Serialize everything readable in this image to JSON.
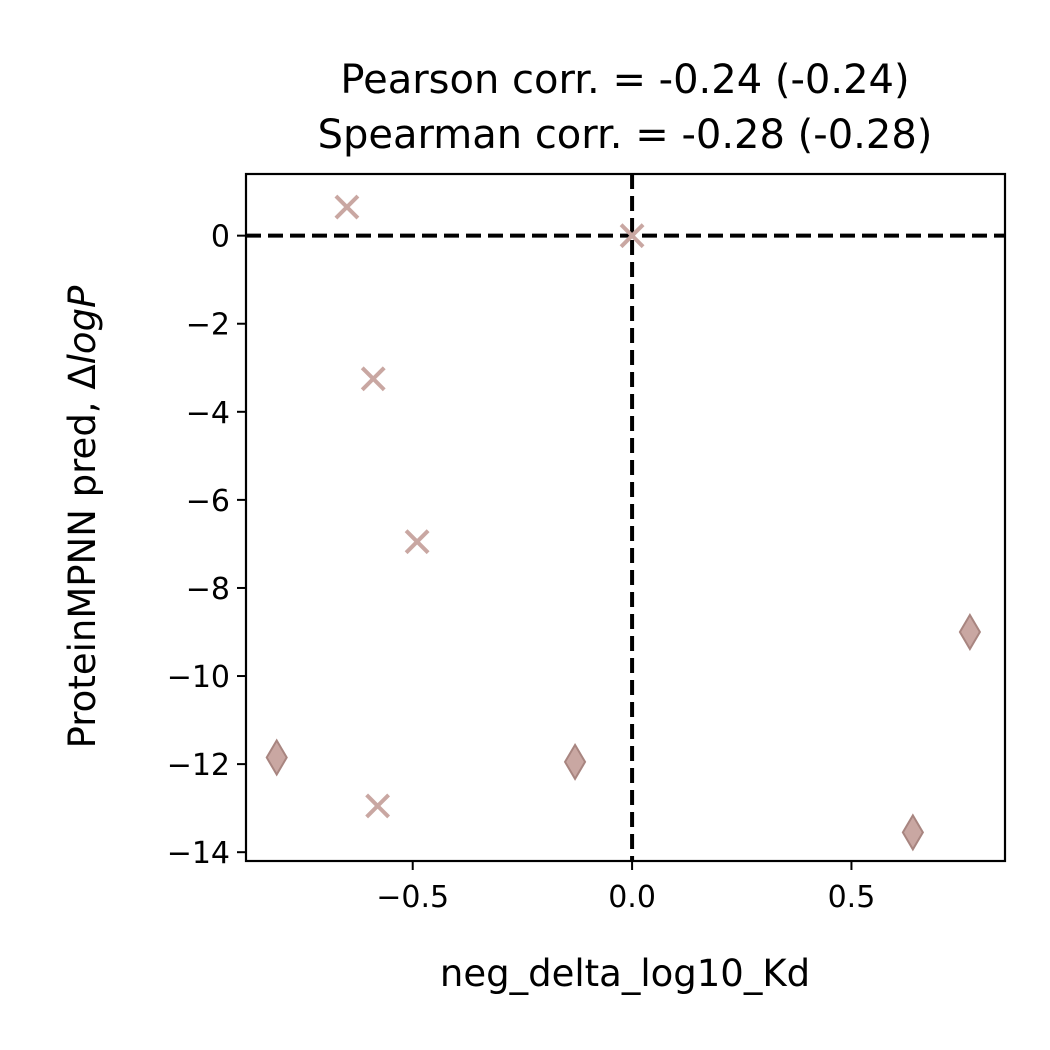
{
  "chart_data": {
    "type": "scatter",
    "title_lines": [
      "Pearson corr. = -0.24 (-0.24)",
      "Spearman corr. = -0.28 (-0.28)"
    ],
    "xlabel": "neg_delta_log10_Kd",
    "ylabel_main": "ProteinMPNN pred, Δ",
    "ylabel_italic": "logP",
    "xlim": [
      -0.88,
      0.85
    ],
    "ylim": [
      -14.2,
      1.4
    ],
    "xticks": [
      -0.5,
      0.0,
      0.5
    ],
    "xtick_labels": [
      "−0.5",
      "0.0",
      "0.5"
    ],
    "yticks": [
      0,
      -2,
      -4,
      -6,
      -8,
      -10,
      -12,
      -14
    ],
    "ytick_labels": [
      "0",
      "−2",
      "−4",
      "−6",
      "−8",
      "−10",
      "−12",
      "−14"
    ],
    "reference_lines": {
      "x": 0,
      "y": 0,
      "style": "dashed",
      "color": "#000000"
    },
    "grid": false,
    "series": [
      {
        "marker": "x",
        "color": "#c9a7a2",
        "points": [
          {
            "x": -0.65,
            "y": 0.65
          },
          {
            "x": 0.0,
            "y": 0.0
          },
          {
            "x": -0.59,
            "y": -3.25
          },
          {
            "x": -0.49,
            "y": -6.95
          },
          {
            "x": -0.58,
            "y": -12.95
          }
        ]
      },
      {
        "marker": "diamond",
        "color": "#c9a7a2",
        "edge_color": "#a88580",
        "points": [
          {
            "x": -0.81,
            "y": -11.85
          },
          {
            "x": -0.13,
            "y": -11.95
          },
          {
            "x": 0.64,
            "y": -13.55
          },
          {
            "x": 0.77,
            "y": -9.0
          }
        ]
      }
    ]
  }
}
